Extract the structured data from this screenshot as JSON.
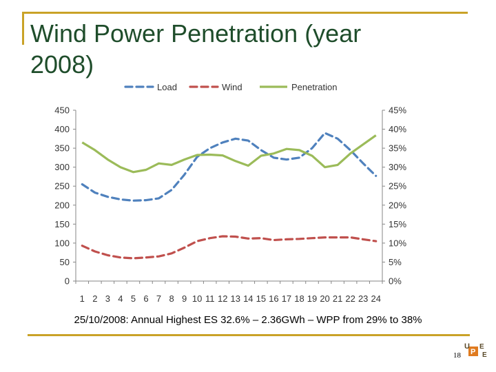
{
  "slide": {
    "title": "Wind Power Penetration (year 2008)",
    "caption": "25/10/2008: Annual Highest ES 32.6% – 2.36GWh – WPP from 29% to 38%",
    "page_number": "18",
    "accent_color": "#c9a227",
    "title_color": "#1f4d2b",
    "logo_text": "UPE",
    "logo_icon": "upe-logo-icon"
  },
  "chart_data": {
    "type": "line",
    "categories": [
      "1",
      "2",
      "3",
      "4",
      "5",
      "6",
      "7",
      "8",
      "9",
      "10",
      "11",
      "12",
      "13",
      "14",
      "15",
      "16",
      "17",
      "18",
      "19",
      "20",
      "21",
      "22",
      "23",
      "24"
    ],
    "series": [
      {
        "name": "Load",
        "axis": "left",
        "color": "#4f81bd",
        "style": "dashed",
        "values": [
          255,
          233,
          222,
          215,
          212,
          213,
          218,
          240,
          280,
          327,
          350,
          365,
          375,
          370,
          345,
          325,
          320,
          325,
          350,
          390,
          375,
          345,
          310,
          277
        ]
      },
      {
        "name": "Wind",
        "axis": "left",
        "color": "#c0504d",
        "style": "dashed",
        "values": [
          93,
          78,
          68,
          62,
          60,
          62,
          65,
          73,
          88,
          105,
          113,
          118,
          117,
          112,
          113,
          108,
          110,
          111,
          113,
          115,
          115,
          115,
          110,
          105
        ]
      },
      {
        "name": "Penetration",
        "axis": "right",
        "color": "#9bbb59",
        "style": "solid",
        "values": [
          36.5,
          34.5,
          32,
          30,
          28.7,
          29.3,
          31,
          30.6,
          32,
          33.2,
          33.3,
          33.1,
          31.6,
          30.4,
          33,
          33.6,
          34.8,
          34.5,
          33,
          30,
          30.6,
          33.6,
          36,
          38.4
        ]
      }
    ],
    "y_left": {
      "ticks": [
        "0",
        "50",
        "100",
        "150",
        "200",
        "250",
        "300",
        "350",
        "400",
        "450"
      ],
      "min": 0,
      "max": 450
    },
    "y_right": {
      "ticks": [
        "0%",
        "5%",
        "10%",
        "15%",
        "20%",
        "25%",
        "30%",
        "35%",
        "40%",
        "45%"
      ],
      "min": 0,
      "max": 45
    },
    "legend_position": "top",
    "grid": false
  }
}
